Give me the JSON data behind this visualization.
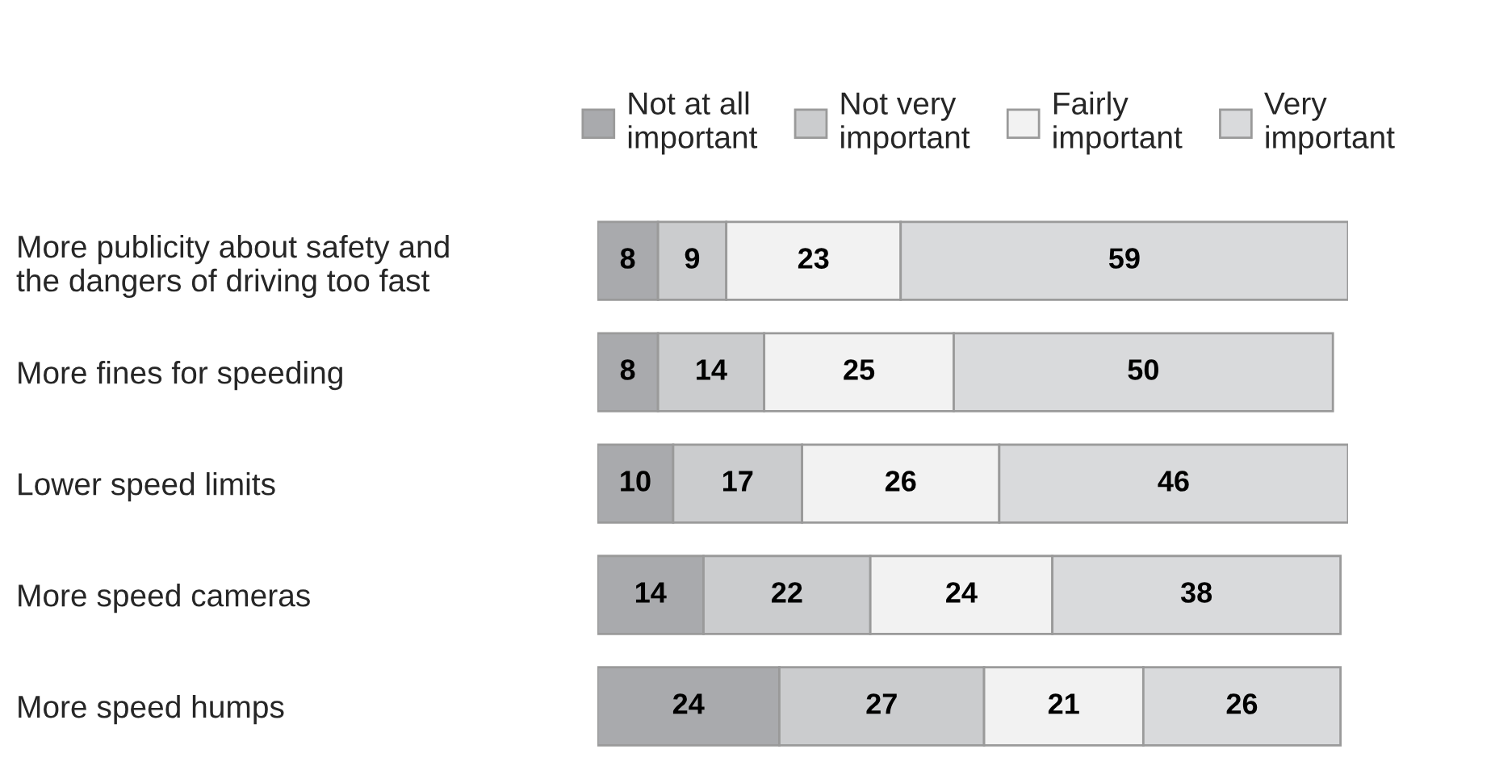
{
  "chart_data": {
    "type": "bar",
    "orientation": "horizontal",
    "stacked": true,
    "data_labels": true,
    "legend": "top",
    "categories": [
      "More publicity about safety and\nthe dangers of driving too fast",
      "More fines for speeding",
      "Lower speed limits",
      "More speed cameras",
      "More speed humps"
    ],
    "series": [
      {
        "name": "Not at all\nimportant",
        "color": "#a9aaad",
        "values": [
          8,
          8,
          10,
          14,
          24
        ]
      },
      {
        "name": "Not very\nimportant",
        "color": "#cbccce",
        "values": [
          9,
          14,
          17,
          22,
          27
        ]
      },
      {
        "name": "Fairly\nimportant",
        "color": "#f2f2f2",
        "values": [
          23,
          25,
          26,
          24,
          21
        ]
      },
      {
        "name": "Very\nimportant",
        "color": "#d9dadc",
        "values": [
          59,
          50,
          46,
          38,
          26
        ]
      }
    ]
  }
}
